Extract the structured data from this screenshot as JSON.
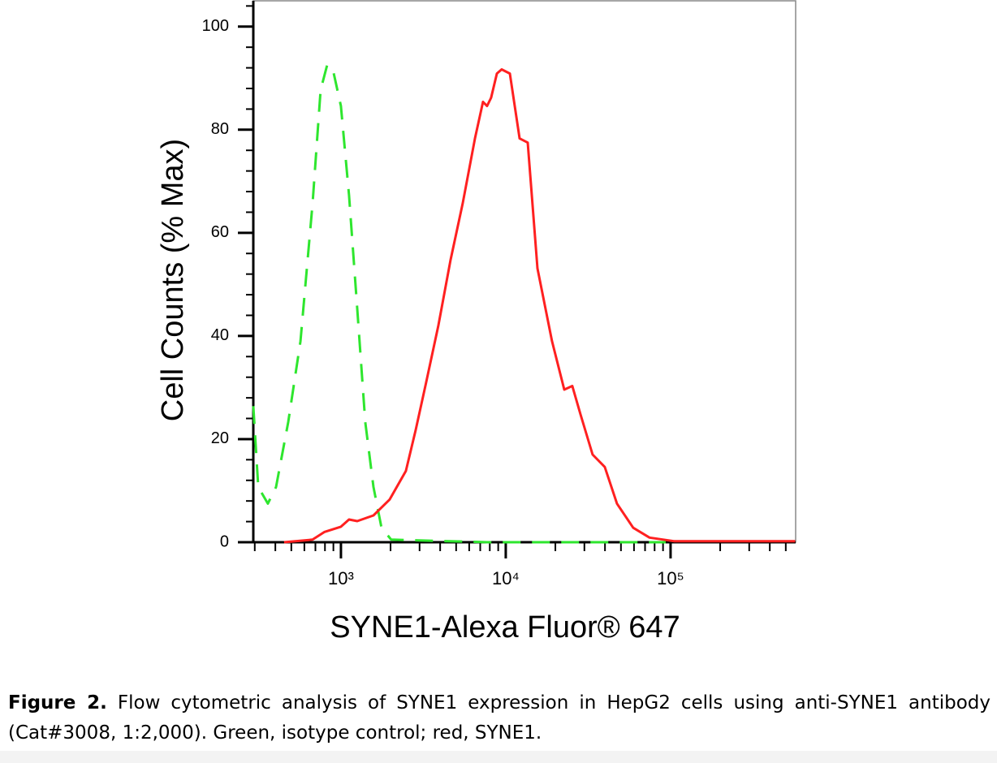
{
  "chart_data": {
    "type": "line",
    "y_label": "Cell Counts (% Max)",
    "x_label": "SYNE1-Alexa Fluor® 647",
    "xscale": "log",
    "xlim": [
      294,
      574000
    ],
    "xticks": [
      {
        "value": 1000,
        "label": "10³"
      },
      {
        "value": 10000,
        "label": "10⁴"
      },
      {
        "value": 100000,
        "label": "10⁵"
      }
    ],
    "xminorticks": [
      300,
      400,
      500,
      600,
      700,
      800,
      900,
      2000,
      3000,
      4000,
      5000,
      6000,
      7000,
      8000,
      9000,
      20000,
      30000,
      40000,
      50000,
      60000,
      70000,
      80000,
      90000,
      200000,
      300000,
      400000,
      500000
    ],
    "ylim": [
      0,
      105
    ],
    "yticks": [
      0,
      20,
      40,
      60,
      80,
      100
    ],
    "yminorticks": [
      4,
      8,
      12,
      16,
      24,
      28,
      32,
      36,
      44,
      48,
      52,
      56,
      64,
      68,
      72,
      76,
      84,
      88,
      92,
      96,
      104
    ],
    "series": [
      {
        "color": "#2ee62e",
        "dash": true,
        "x": [
          294,
          315,
          360,
          404,
          479,
          568,
          673,
          753,
          824,
          893,
          1000,
          1120,
          1255,
          1405,
          1575,
          1763,
          2018,
          7700,
          93500
        ],
        "values": [
          26.4,
          10.7,
          7.5,
          10.7,
          23.3,
          39,
          65.7,
          87.7,
          92.5,
          91.7,
          84.6,
          67.3,
          45.3,
          23.3,
          10.7,
          2.8,
          0.5,
          0,
          0
        ]
      },
      {
        "color": "#ff2020",
        "dash": false,
        "x": [
          452,
          673,
          796,
          1000,
          1120,
          1255,
          1575,
          1976,
          2477,
          2838,
          3289,
          3899,
          4623,
          5481,
          6500,
          7277,
          7700,
          8147,
          8830,
          9443,
          10590,
          12130,
          13590,
          15570,
          19090,
          22640,
          25350,
          28400,
          33650,
          39900,
          47300,
          59300,
          74500,
          104700,
          570000
        ],
        "values": [
          0,
          0.5,
          2,
          3,
          4.4,
          4.1,
          5.2,
          8.3,
          13.8,
          21.7,
          31,
          42,
          54.7,
          65.7,
          78.3,
          85.4,
          84.6,
          86.2,
          90.9,
          91.7,
          90.9,
          78.3,
          77.5,
          53.1,
          39,
          29.6,
          30.3,
          24.8,
          17,
          14.6,
          7.5,
          2.8,
          0.9,
          0.2,
          0.2
        ]
      }
    ]
  },
  "caption": {
    "label": "Figure 2.",
    "text": "Flow cytometric analysis of SYNE1 expression in HepG2 cells using anti-SYNE1 antibody (Cat#3008, 1:2,000). Green, isotype control; red, SYNE1."
  }
}
